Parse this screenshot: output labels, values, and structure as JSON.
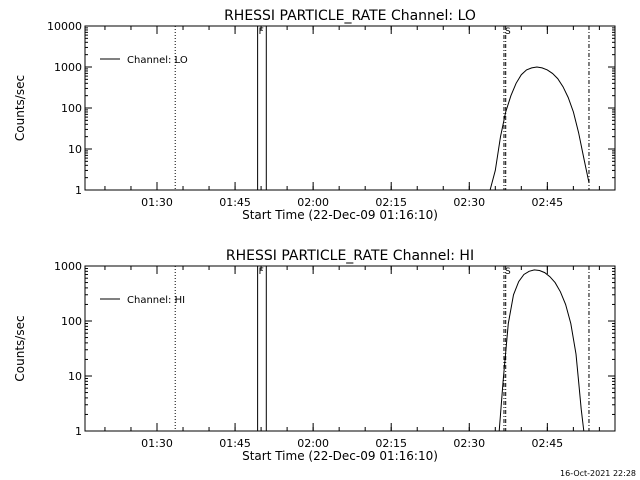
{
  "footer": {
    "timestamp": "16-Oct-2021 22:28"
  },
  "chart_data": [
    {
      "type": "line",
      "title": "RHESSI PARTICLE_RATE Channel: LO",
      "xlabel": "Start Time (22-Dec-09 01:16:10)",
      "ylabel": "Counts/sec",
      "yscale": "log",
      "xlim": [
        "01:16:10",
        "02:58"
      ],
      "ylim": [
        1,
        10000
      ],
      "x_ticks": [
        "01:30",
        "01:45",
        "02:00",
        "02:15",
        "02:30",
        "02:45"
      ],
      "y_ticks": [
        "1",
        "10",
        "100",
        "1000",
        "10000"
      ],
      "grid": false,
      "legend": {
        "position": "top-left",
        "entries": [
          "Channel: LO"
        ]
      },
      "series": [
        {
          "name": "Channel: LO",
          "x": [
            "02:34:00",
            "02:35:00",
            "02:36:00",
            "02:37:00",
            "02:38:00",
            "02:39:00",
            "02:40:00",
            "02:41:00",
            "02:42:00",
            "02:43:00",
            "02:44:00",
            "02:45:00",
            "02:46:00",
            "02:47:00",
            "02:48:00",
            "02:49:00",
            "02:50:00",
            "02:51:00",
            "02:52:00",
            "02:53:00"
          ],
          "y": [
            1,
            3,
            20,
            80,
            200,
            400,
            650,
            850,
            950,
            1000,
            950,
            850,
            700,
            520,
            330,
            180,
            80,
            25,
            6,
            1.5
          ]
        }
      ],
      "vertical_markers": [
        {
          "time": "01:33:30",
          "style": "dotted"
        },
        {
          "time": "01:49:20",
          "style": "solid",
          "label": "F"
        },
        {
          "time": "01:51:00",
          "style": "solid"
        },
        {
          "time": "02:36:40",
          "style": "dash-dot",
          "label": "S"
        },
        {
          "time": "02:37:00",
          "style": "dash-dot"
        },
        {
          "time": "02:53:00",
          "style": "dash-dot"
        }
      ]
    },
    {
      "type": "line",
      "title": "RHESSI PARTICLE_RATE Channel: HI",
      "xlabel": "Start Time (22-Dec-09 01:16:10)",
      "ylabel": "Counts/sec",
      "yscale": "log",
      "xlim": [
        "01:16:10",
        "02:58"
      ],
      "ylim": [
        1,
        1000
      ],
      "x_ticks": [
        "01:30",
        "01:45",
        "02:00",
        "02:15",
        "02:30",
        "02:45"
      ],
      "y_ticks": [
        "1",
        "10",
        "100",
        "1000"
      ],
      "grid": false,
      "legend": {
        "position": "top-left",
        "entries": [
          "Channel: HI"
        ]
      },
      "series": [
        {
          "name": "Channel: HI",
          "x": [
            "02:35:45",
            "02:36:30",
            "02:37:30",
            "02:38:30",
            "02:39:30",
            "02:40:30",
            "02:41:30",
            "02:42:30",
            "02:43:30",
            "02:44:30",
            "02:45:30",
            "02:46:30",
            "02:47:30",
            "02:48:30",
            "02:49:30",
            "02:50:30",
            "02:51:00",
            "02:51:30",
            "02:52:00"
          ],
          "y": [
            1,
            8,
            90,
            300,
            520,
            700,
            800,
            850,
            830,
            760,
            640,
            500,
            340,
            200,
            90,
            25,
            8,
            2.5,
            1
          ]
        }
      ],
      "vertical_markers": [
        {
          "time": "01:33:30",
          "style": "dotted"
        },
        {
          "time": "01:49:20",
          "style": "solid",
          "label": "F"
        },
        {
          "time": "01:51:00",
          "style": "solid"
        },
        {
          "time": "02:36:40",
          "style": "dash-dot",
          "label": "S"
        },
        {
          "time": "02:37:00",
          "style": "dash-dot"
        },
        {
          "time": "02:53:00",
          "style": "dash-dot"
        }
      ]
    }
  ]
}
